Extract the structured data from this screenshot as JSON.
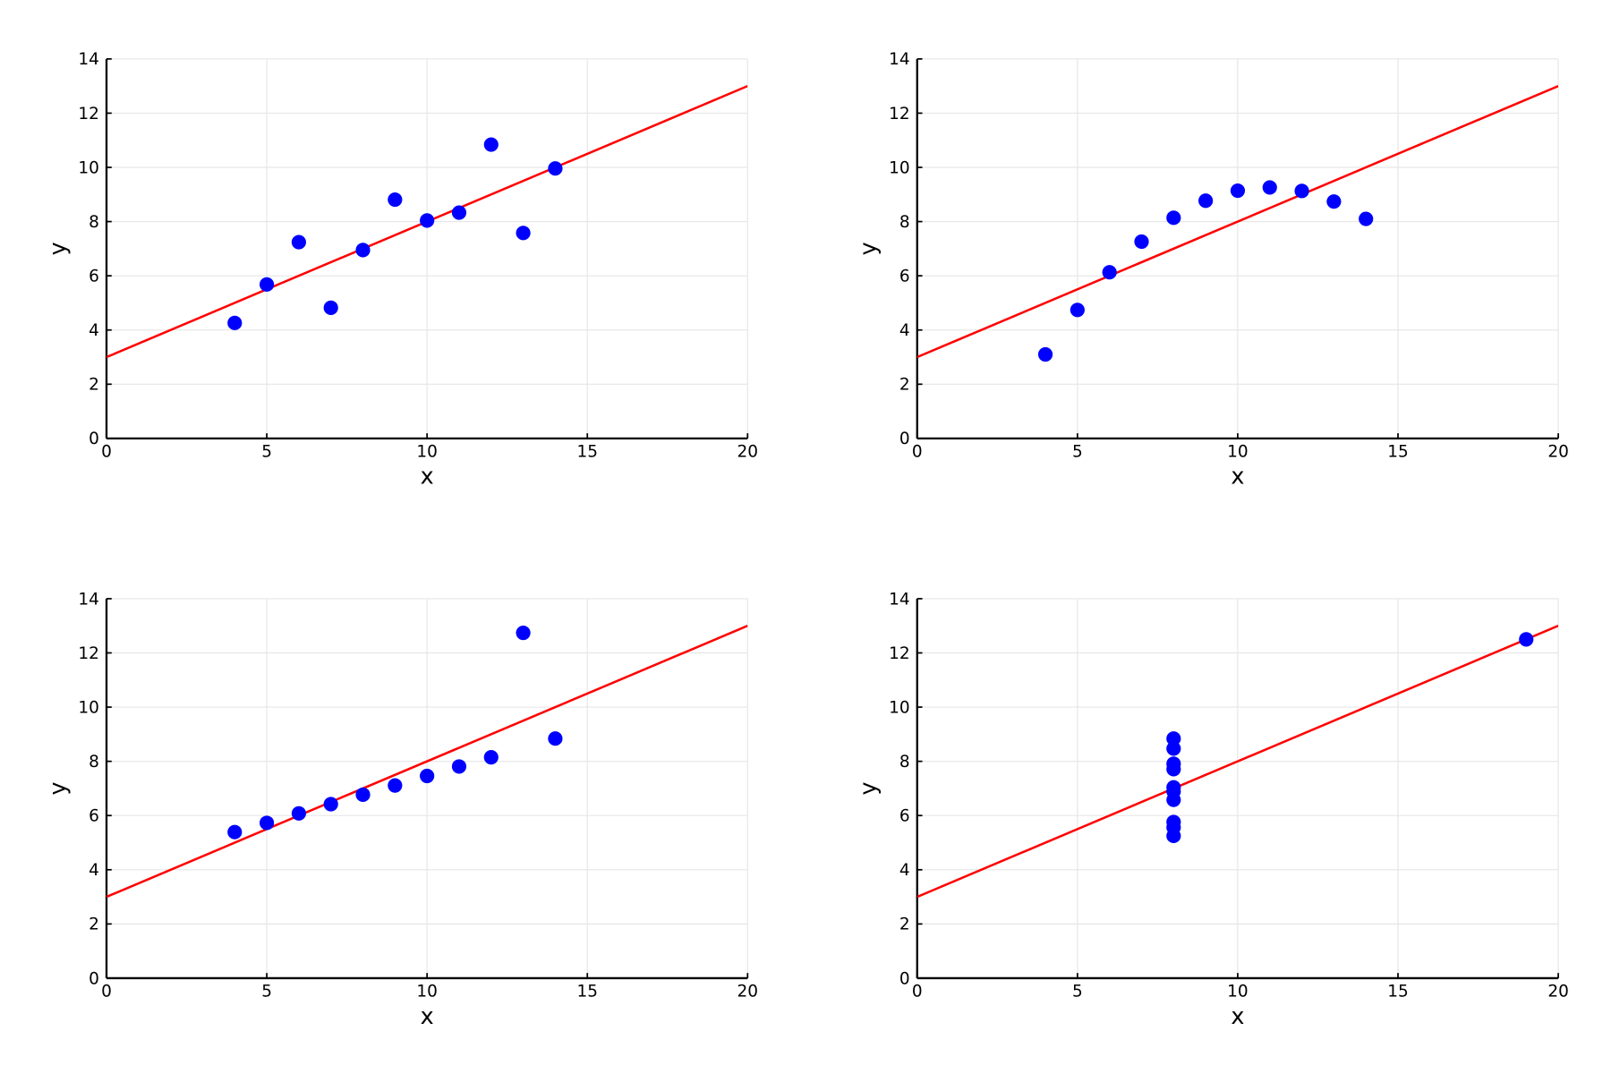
{
  "chart_data": [
    {
      "type": "scatter",
      "xlabel": "x",
      "ylabel": "y",
      "xlim": [
        0,
        20
      ],
      "ylim": [
        0,
        14
      ],
      "xticks": [
        0,
        5,
        10,
        15,
        20
      ],
      "yticks": [
        0,
        2,
        4,
        6,
        8,
        10,
        12,
        14
      ],
      "grid": true,
      "legend": false,
      "point_color": "#0000ff",
      "line_color": "#ff0000",
      "points": {
        "x": [
          10,
          8,
          13,
          9,
          11,
          14,
          6,
          4,
          12,
          7,
          5
        ],
        "y": [
          8.04,
          6.95,
          7.58,
          8.81,
          8.33,
          9.96,
          7.24,
          4.26,
          10.84,
          4.82,
          5.68
        ]
      },
      "fit_line": {
        "intercept": 3.0,
        "slope": 0.5
      }
    },
    {
      "type": "scatter",
      "xlabel": "x",
      "ylabel": "y",
      "xlim": [
        0,
        20
      ],
      "ylim": [
        0,
        14
      ],
      "xticks": [
        0,
        5,
        10,
        15,
        20
      ],
      "yticks": [
        0,
        2,
        4,
        6,
        8,
        10,
        12,
        14
      ],
      "grid": true,
      "legend": false,
      "point_color": "#0000ff",
      "line_color": "#ff0000",
      "points": {
        "x": [
          10,
          8,
          13,
          9,
          11,
          14,
          6,
          4,
          12,
          7,
          5
        ],
        "y": [
          9.14,
          8.14,
          8.74,
          8.77,
          9.26,
          8.1,
          6.13,
          3.1,
          9.13,
          7.26,
          4.74
        ]
      },
      "fit_line": {
        "intercept": 3.0,
        "slope": 0.5
      }
    },
    {
      "type": "scatter",
      "xlabel": "x",
      "ylabel": "y",
      "xlim": [
        0,
        20
      ],
      "ylim": [
        0,
        14
      ],
      "xticks": [
        0,
        5,
        10,
        15,
        20
      ],
      "yticks": [
        0,
        2,
        4,
        6,
        8,
        10,
        12,
        14
      ],
      "grid": true,
      "legend": false,
      "point_color": "#0000ff",
      "line_color": "#ff0000",
      "points": {
        "x": [
          10,
          8,
          13,
          9,
          11,
          14,
          6,
          4,
          12,
          7,
          5
        ],
        "y": [
          7.46,
          6.77,
          12.74,
          7.11,
          7.81,
          8.84,
          6.08,
          5.39,
          8.15,
          6.42,
          5.73
        ]
      },
      "fit_line": {
        "intercept": 3.0,
        "slope": 0.5
      }
    },
    {
      "type": "scatter",
      "xlabel": "x",
      "ylabel": "y",
      "xlim": [
        0,
        20
      ],
      "ylim": [
        0,
        14
      ],
      "xticks": [
        0,
        5,
        10,
        15,
        20
      ],
      "yticks": [
        0,
        2,
        4,
        6,
        8,
        10,
        12,
        14
      ],
      "grid": true,
      "legend": false,
      "point_color": "#0000ff",
      "line_color": "#ff0000",
      "points": {
        "x": [
          8,
          8,
          8,
          8,
          8,
          8,
          8,
          19,
          8,
          8,
          8
        ],
        "y": [
          6.58,
          5.76,
          7.71,
          8.84,
          8.47,
          7.04,
          5.25,
          12.5,
          5.56,
          7.91,
          6.89
        ]
      },
      "fit_line": {
        "intercept": 3.0,
        "slope": 0.5
      }
    }
  ]
}
